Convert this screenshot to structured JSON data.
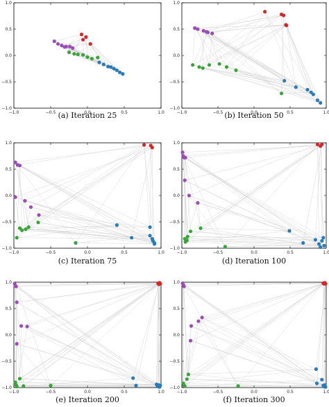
{
  "colors": {
    "red": "#d62728",
    "purple": "#9b4db5",
    "green": "#3aa33a",
    "blue": "#2b7bba",
    "edge": "#d0d0d0",
    "frame": "#000000"
  },
  "chart_data": [
    {
      "type": "scatter",
      "caption": "(a) Iteration 25",
      "xlim": [
        -1,
        1
      ],
      "ylim": [
        -1,
        1
      ],
      "xticks": [
        "−1.0",
        "−0.5",
        "0.0",
        "0.5",
        "1.0"
      ],
      "yticks": [
        "−1.0",
        "−0.5",
        "0.0",
        "0.5",
        "1.0"
      ],
      "series": [
        {
          "color": "red",
          "points": [
            [
              -0.08,
              0.4
            ],
            [
              -0.02,
              0.35
            ],
            [
              -0.06,
              0.3
            ],
            [
              0.04,
              0.22
            ]
          ]
        },
        {
          "color": "purple",
          "points": [
            [
              -0.45,
              0.27
            ],
            [
              -0.4,
              0.22
            ],
            [
              -0.35,
              0.19
            ],
            [
              -0.31,
              0.16
            ],
            [
              -0.29,
              0.17
            ],
            [
              -0.24,
              0.17
            ],
            [
              -0.2,
              0.14
            ]
          ]
        },
        {
          "color": "green",
          "points": [
            [
              -0.25,
              0.06
            ],
            [
              -0.18,
              0.03
            ],
            [
              -0.13,
              0.02
            ],
            [
              -0.06,
              0.01
            ],
            [
              0.0,
              -0.03
            ],
            [
              0.06,
              -0.06
            ],
            [
              0.14,
              -0.04
            ]
          ]
        },
        {
          "color": "blue",
          "points": [
            [
              0.16,
              -0.13
            ],
            [
              0.22,
              -0.17
            ],
            [
              0.28,
              -0.21
            ],
            [
              0.32,
              -0.22
            ],
            [
              0.36,
              -0.25
            ],
            [
              0.4,
              -0.28
            ],
            [
              0.44,
              -0.32
            ],
            [
              0.48,
              -0.35
            ]
          ]
        }
      ]
    },
    {
      "type": "scatter",
      "caption": "(b) Iteration 50",
      "xlim": [
        -1,
        1
      ],
      "ylim": [
        -1,
        1
      ],
      "xticks": [
        "−1.0",
        "−0.5",
        "0.0",
        "0.5",
        "1.0"
      ],
      "yticks": [
        "−1.0",
        "−0.5",
        "0.0",
        "0.5",
        "1.0"
      ],
      "series": [
        {
          "color": "red",
          "points": [
            [
              0.15,
              0.83
            ],
            [
              0.38,
              0.78
            ],
            [
              0.41,
              0.76
            ],
            [
              0.44,
              0.58
            ],
            [
              0.45,
              0.57
            ]
          ]
        },
        {
          "color": "purple",
          "points": [
            [
              -0.82,
              0.52
            ],
            [
              -0.78,
              0.5
            ],
            [
              -0.7,
              0.47
            ],
            [
              -0.66,
              0.45
            ],
            [
              -0.64,
              0.44
            ],
            [
              -0.58,
              0.42
            ]
          ]
        },
        {
          "color": "green",
          "points": [
            [
              -0.85,
              -0.18
            ],
            [
              -0.76,
              -0.22
            ],
            [
              -0.71,
              -0.24
            ],
            [
              -0.62,
              -0.18
            ],
            [
              -0.48,
              -0.16
            ],
            [
              -0.38,
              -0.22
            ],
            [
              -0.25,
              -0.28
            ],
            [
              0.38,
              -0.72
            ]
          ]
        },
        {
          "color": "blue",
          "points": [
            [
              0.42,
              -0.48
            ],
            [
              0.58,
              -0.6
            ],
            [
              0.74,
              -0.65
            ],
            [
              0.79,
              -0.7
            ],
            [
              0.82,
              -0.74
            ],
            [
              0.88,
              -0.85
            ],
            [
              0.92,
              -0.9
            ]
          ]
        }
      ]
    },
    {
      "type": "scatter",
      "caption": "(c) Iteration 75",
      "xlim": [
        -1,
        1
      ],
      "ylim": [
        -1,
        1
      ],
      "xticks": [
        "−1.0",
        "−0.5",
        "0.0",
        "0.5",
        "1.0"
      ],
      "yticks": [
        "−1.0",
        "−0.5",
        "0.0",
        "0.5",
        "1.0"
      ],
      "series": [
        {
          "color": "red",
          "points": [
            [
              0.77,
              0.96
            ],
            [
              0.86,
              0.95
            ],
            [
              0.88,
              0.91
            ]
          ]
        },
        {
          "color": "purple",
          "points": [
            [
              -0.98,
              0.63
            ],
            [
              -0.95,
              0.58
            ],
            [
              -0.92,
              0.57
            ],
            [
              -0.98,
              -0.03
            ],
            [
              -0.85,
              -0.1
            ],
            [
              -0.77,
              -0.22
            ],
            [
              -0.66,
              -0.37
            ]
          ]
        },
        {
          "color": "green",
          "points": [
            [
              -0.92,
              -0.62
            ],
            [
              -0.89,
              -0.66
            ],
            [
              -0.84,
              -0.64
            ],
            [
              -0.8,
              -0.6
            ],
            [
              -0.67,
              -0.51
            ],
            [
              -0.96,
              -0.8
            ],
            [
              -0.16,
              -0.9
            ]
          ]
        },
        {
          "color": "blue",
          "points": [
            [
              0.4,
              -0.56
            ],
            [
              0.6,
              -0.8
            ],
            [
              0.85,
              -0.6
            ],
            [
              0.85,
              -0.76
            ],
            [
              0.88,
              -0.82
            ],
            [
              0.89,
              -0.86
            ],
            [
              0.91,
              -0.9
            ],
            [
              0.91,
              -0.92
            ]
          ]
        }
      ]
    },
    {
      "type": "scatter",
      "caption": "(d) Iteration 100",
      "xlim": [
        -1,
        1
      ],
      "ylim": [
        -1,
        1
      ],
      "xticks": [
        "−1.0",
        "−0.5",
        "0.0",
        "0.5",
        "1.0"
      ],
      "yticks": [
        "−1.0",
        "−0.5",
        "0.0",
        "0.5",
        "1.0"
      ],
      "series": [
        {
          "color": "red",
          "points": [
            [
              0.88,
              0.97
            ],
            [
              0.92,
              0.94
            ],
            [
              0.94,
              0.97
            ]
          ]
        },
        {
          "color": "purple",
          "points": [
            [
              -0.99,
              0.82
            ],
            [
              -0.98,
              0.75
            ],
            [
              -0.97,
              0.72
            ],
            [
              -0.95,
              0.72
            ],
            [
              -0.96,
              0.29
            ],
            [
              -0.9,
              0.0
            ],
            [
              -0.78,
              -0.14
            ]
          ]
        },
        {
          "color": "green",
          "points": [
            [
              -0.96,
              -0.82
            ],
            [
              -0.95,
              -0.88
            ],
            [
              -0.93,
              -0.85
            ],
            [
              -0.92,
              -0.78
            ],
            [
              -0.88,
              -0.68
            ],
            [
              -0.74,
              -0.62
            ],
            [
              -0.4,
              -0.97
            ]
          ]
        },
        {
          "color": "blue",
          "points": [
            [
              0.49,
              -0.67
            ],
            [
              0.68,
              -0.9
            ],
            [
              0.85,
              -0.84
            ],
            [
              0.9,
              -0.92
            ],
            [
              0.92,
              -0.98
            ],
            [
              0.94,
              -0.86
            ],
            [
              0.96,
              -0.8
            ],
            [
              0.97,
              -0.95
            ]
          ]
        }
      ]
    },
    {
      "type": "scatter",
      "caption": "(e) Iteration 200",
      "xlim": [
        -1,
        1
      ],
      "ylim": [
        -1,
        1
      ],
      "xticks": [
        "−1.0",
        "−0.5",
        "0.0",
        "0.5",
        "1.0"
      ],
      "yticks": [
        "−1.0",
        "−0.5",
        "0.0",
        "0.5",
        "1.0"
      ],
      "series": [
        {
          "color": "red",
          "points": [
            [
              0.96,
              0.98
            ],
            [
              0.97,
              0.97
            ],
            [
              0.98,
              0.99
            ],
            [
              0.99,
              0.97
            ],
            [
              0.97,
              0.96
            ]
          ]
        },
        {
          "color": "purple",
          "points": [
            [
              -0.99,
              0.97
            ],
            [
              -0.98,
              0.93
            ],
            [
              -0.97,
              0.92
            ],
            [
              -0.96,
              0.62
            ],
            [
              -0.9,
              0.17
            ],
            [
              -0.82,
              0.16
            ],
            [
              -0.96,
              -0.17
            ]
          ]
        },
        {
          "color": "green",
          "points": [
            [
              -0.98,
              -0.9
            ],
            [
              -0.97,
              -0.95
            ],
            [
              -0.96,
              -0.98
            ],
            [
              -0.92,
              -0.83
            ],
            [
              -0.87,
              -0.97
            ],
            [
              -0.5,
              -0.96
            ]
          ]
        },
        {
          "color": "blue",
          "points": [
            [
              0.62,
              -0.82
            ],
            [
              0.66,
              -0.96
            ],
            [
              0.94,
              -0.94
            ],
            [
              0.95,
              -0.97
            ],
            [
              0.96,
              -0.98
            ],
            [
              0.97,
              -0.95
            ],
            [
              0.98,
              -0.99
            ],
            [
              0.99,
              -0.96
            ]
          ]
        }
      ]
    },
    {
      "type": "scatter",
      "caption": "(f) Iteration 300",
      "xlim": [
        -1,
        1
      ],
      "ylim": [
        -1,
        1
      ],
      "xticks": [
        "−1.0",
        "−0.5",
        "0.0",
        "0.5",
        "1.0"
      ],
      "yticks": [
        "−1.0",
        "−0.5",
        "0.0",
        "0.5",
        "1.0"
      ],
      "series": [
        {
          "color": "red",
          "points": [
            [
              0.96,
              0.98
            ],
            [
              0.97,
              0.97
            ],
            [
              0.98,
              0.99
            ],
            [
              0.99,
              0.97
            ]
          ]
        },
        {
          "color": "purple",
          "points": [
            [
              -0.99,
              0.98
            ],
            [
              -0.98,
              0.95
            ],
            [
              -0.97,
              0.92
            ],
            [
              -0.72,
              0.33
            ],
            [
              -0.77,
              0.26
            ],
            [
              -0.87,
              0.17
            ],
            [
              -0.88,
              -0.11
            ]
          ]
        },
        {
          "color": "green",
          "points": [
            [
              -0.98,
              -0.92
            ],
            [
              -0.97,
              -0.96
            ],
            [
              -0.96,
              -0.97
            ],
            [
              -0.93,
              -0.84
            ],
            [
              -0.91,
              -0.75
            ],
            [
              -0.22,
              -0.97
            ]
          ]
        },
        {
          "color": "blue",
          "points": [
            [
              0.86,
              -0.65
            ],
            [
              0.87,
              -0.92
            ],
            [
              0.94,
              -0.85
            ],
            [
              0.96,
              -0.96
            ],
            [
              0.97,
              -0.98
            ],
            [
              0.98,
              -0.95
            ],
            [
              0.99,
              -0.99
            ]
          ]
        }
      ]
    }
  ]
}
